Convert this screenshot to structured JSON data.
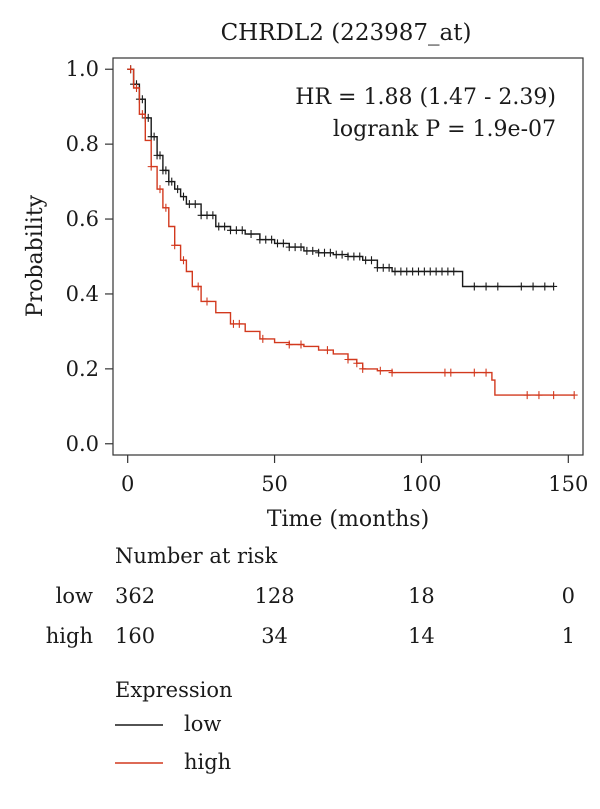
{
  "chart_data": {
    "type": "line",
    "subtype": "kaplan-meier",
    "title": "CHRDL2 (223987_at)",
    "xlabel": "Time (months)",
    "ylabel": "Probability",
    "xlim": [
      -5,
      155
    ],
    "ylim": [
      -0.03,
      1.03
    ],
    "x_ticks": [
      0,
      50,
      100,
      150
    ],
    "x_tick_labels": [
      "0",
      "50",
      "100",
      "150"
    ],
    "y_ticks": [
      0.0,
      0.2,
      0.4,
      0.6,
      0.8,
      1.0
    ],
    "y_tick_labels": [
      "0.0",
      "0.2",
      "0.4",
      "0.6",
      "0.8",
      "1.0"
    ],
    "grid": false,
    "annotations": [
      "HR = 1.88 (1.47 - 2.39)",
      "logrank P = 1.9e-07"
    ],
    "series": [
      {
        "name": "low",
        "color": "#1a1a1a",
        "x": [
          0,
          2,
          4,
          6,
          8,
          10,
          12,
          14,
          16,
          18,
          20,
          25,
          30,
          35,
          40,
          45,
          50,
          55,
          60,
          65,
          70,
          75,
          80,
          85,
          90,
          95,
          100,
          105,
          110,
          113,
          114,
          120,
          130,
          140,
          145
        ],
        "y": [
          1.0,
          0.96,
          0.92,
          0.87,
          0.82,
          0.77,
          0.73,
          0.7,
          0.68,
          0.66,
          0.64,
          0.61,
          0.58,
          0.57,
          0.56,
          0.545,
          0.535,
          0.525,
          0.515,
          0.51,
          0.505,
          0.5,
          0.49,
          0.47,
          0.46,
          0.46,
          0.46,
          0.46,
          0.46,
          0.46,
          0.42,
          0.42,
          0.42,
          0.42,
          0.42
        ],
        "censor_x": [
          1,
          2,
          3,
          4,
          5,
          6,
          7,
          8,
          9,
          10,
          11,
          12,
          13,
          14,
          15,
          17,
          19,
          21,
          23,
          25,
          27,
          29,
          31,
          33,
          35,
          37,
          39,
          42,
          45,
          47,
          49,
          51,
          53,
          55,
          57,
          59,
          61,
          63,
          65,
          67,
          69,
          71,
          73,
          75,
          77,
          79,
          81,
          83,
          85,
          87,
          89,
          91,
          93,
          95,
          97,
          99,
          101,
          103,
          105,
          107,
          109,
          111,
          118,
          122,
          126,
          134,
          138,
          142,
          145
        ]
      },
      {
        "name": "high",
        "color": "#d2391e",
        "x": [
          0,
          2,
          4,
          6,
          8,
          10,
          12,
          14,
          16,
          18,
          20,
          22,
          25,
          30,
          35,
          40,
          45,
          50,
          55,
          60,
          65,
          70,
          75,
          78,
          80,
          85,
          90,
          95,
          100,
          110,
          120,
          124,
          125,
          130,
          140,
          152
        ],
        "y": [
          1.0,
          0.95,
          0.88,
          0.81,
          0.74,
          0.68,
          0.63,
          0.58,
          0.53,
          0.49,
          0.46,
          0.42,
          0.38,
          0.35,
          0.32,
          0.3,
          0.28,
          0.27,
          0.265,
          0.26,
          0.25,
          0.24,
          0.225,
          0.215,
          0.2,
          0.195,
          0.19,
          0.19,
          0.19,
          0.19,
          0.19,
          0.17,
          0.13,
          0.13,
          0.13,
          0.13
        ],
        "censor_x": [
          1,
          3,
          5,
          8,
          11,
          13,
          16,
          19,
          24,
          27,
          36,
          38,
          46,
          55,
          59,
          68,
          75,
          78,
          80,
          86,
          90,
          108,
          110,
          118,
          122,
          136,
          140,
          145,
          152
        ]
      }
    ],
    "risk_table": {
      "heading": "Number at risk",
      "time_points": [
        0,
        50,
        100,
        150
      ],
      "rows": [
        {
          "label": "low",
          "counts": [
            "362",
            "128",
            "18",
            "0"
          ]
        },
        {
          "label": "high",
          "counts": [
            "160",
            "34",
            "14",
            "1"
          ]
        }
      ]
    },
    "legend": {
      "title": "Expression",
      "placement": "bottom-left",
      "items": [
        {
          "label": "low",
          "color": "#1a1a1a"
        },
        {
          "label": "high",
          "color": "#d2391e"
        }
      ]
    }
  }
}
